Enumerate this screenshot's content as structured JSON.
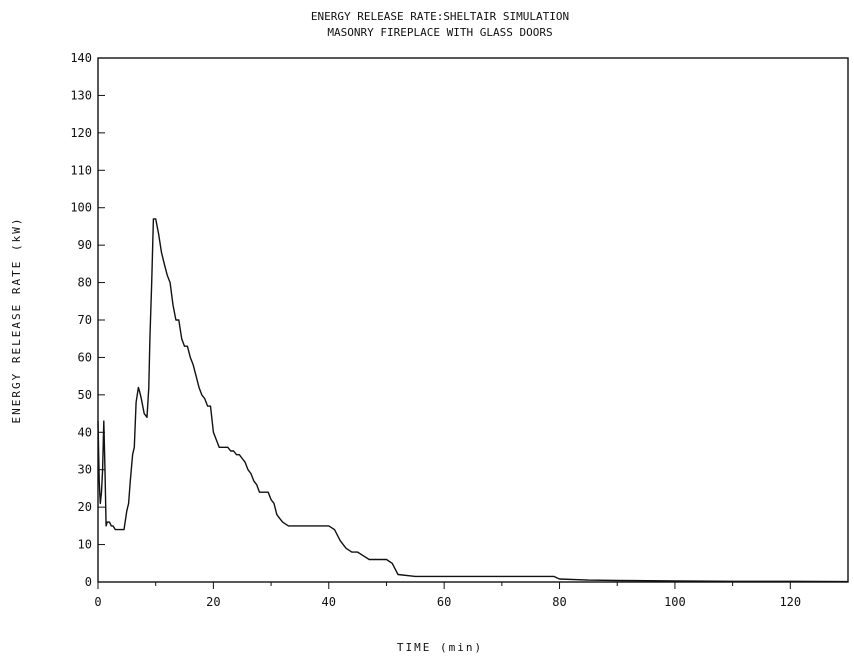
{
  "chart_data": {
    "type": "line",
    "title": "ENERGY RELEASE RATE:SHELTAIR SIMULATION",
    "subtitle": "MASONRY FIREPLACE WITH GLASS DOORS",
    "xlabel": "TIME (min)",
    "ylabel": "ENERGY RELEASE RATE (kW)",
    "xlim": [
      0,
      130
    ],
    "ylim": [
      0,
      140
    ],
    "x_ticks": [
      0,
      20,
      40,
      60,
      80,
      100,
      120
    ],
    "y_ticks": [
      0,
      10,
      20,
      30,
      40,
      50,
      60,
      70,
      80,
      90,
      100,
      110,
      120,
      130,
      140
    ],
    "x_tick_labels": [
      "0",
      "20",
      "40",
      "60",
      "80",
      "100",
      "120"
    ],
    "y_tick_labels": [
      "0",
      "10",
      "20",
      "30",
      "40",
      "50",
      "60",
      "70",
      "80",
      "90",
      "100",
      "110",
      "120",
      "130",
      "140"
    ],
    "grid": false,
    "series": [
      {
        "color": "#111111",
        "x": [
          0,
          0.2,
          0.4,
          0.6,
          0.8,
          1.0,
          1.2,
          1.4,
          1.6,
          1.8,
          2.0,
          2.3,
          2.6,
          3.0,
          3.5,
          4.0,
          4.5,
          5.0,
          5.3,
          5.6,
          6.0,
          6.3,
          6.6,
          7.0,
          7.2,
          7.5,
          8.0,
          8.5,
          8.8,
          9.0,
          9.3,
          9.6,
          10.0,
          10.5,
          11.0,
          11.5,
          12.0,
          12.5,
          13.0,
          13.5,
          14.0,
          14.5,
          15.0,
          15.5,
          16.0,
          16.5,
          17.0,
          17.5,
          18.0,
          18.5,
          19.0,
          19.5,
          20.0,
          20.5,
          21.0,
          21.5,
          22.0,
          22.5,
          23.0,
          23.5,
          24.0,
          24.5,
          25.0,
          25.5,
          26.0,
          26.5,
          27.0,
          27.5,
          28.0,
          28.5,
          29.0,
          29.5,
          30.0,
          30.5,
          31.0,
          31.5,
          32.0,
          33.0,
          34.0,
          35.0,
          35.5,
          36.0,
          36.5,
          37.0,
          38.0,
          39.0,
          40.0,
          41.0,
          42.0,
          43.0,
          44.0,
          45.0,
          46.0,
          47.0,
          48.0,
          49.0,
          50.0,
          51.0,
          52.0,
          55.0,
          60.0,
          65.0,
          70.0,
          75.0,
          79.0,
          80.0,
          85.0,
          90.0,
          100.0,
          110.0,
          120.0,
          130.0
        ],
        "y": [
          43,
          27,
          21,
          24,
          30,
          43,
          31,
          15,
          16,
          16,
          16,
          15,
          15,
          14,
          14,
          14,
          14,
          19,
          21,
          27,
          34,
          36,
          48,
          52,
          51,
          49,
          45,
          44,
          52,
          65,
          80,
          97,
          97,
          93,
          88,
          85,
          82,
          80,
          74,
          70,
          70,
          65,
          63,
          63,
          60,
          58,
          55,
          52,
          50,
          49,
          47,
          47,
          40,
          38,
          36,
          36,
          36,
          36,
          35,
          35,
          34,
          34,
          33,
          32,
          30,
          29,
          27,
          26,
          24,
          24,
          24,
          24,
          22,
          21,
          18,
          17,
          16,
          15,
          15,
          15,
          15,
          15,
          15,
          15,
          15,
          15,
          15,
          14,
          11,
          9,
          8,
          8,
          7,
          6,
          6,
          6,
          6,
          5,
          2,
          1.5,
          1.5,
          1.5,
          1.5,
          1.5,
          1.5,
          0.8,
          0.5,
          0.4,
          0.3,
          0.2,
          0.2,
          0.1
        ]
      }
    ]
  }
}
